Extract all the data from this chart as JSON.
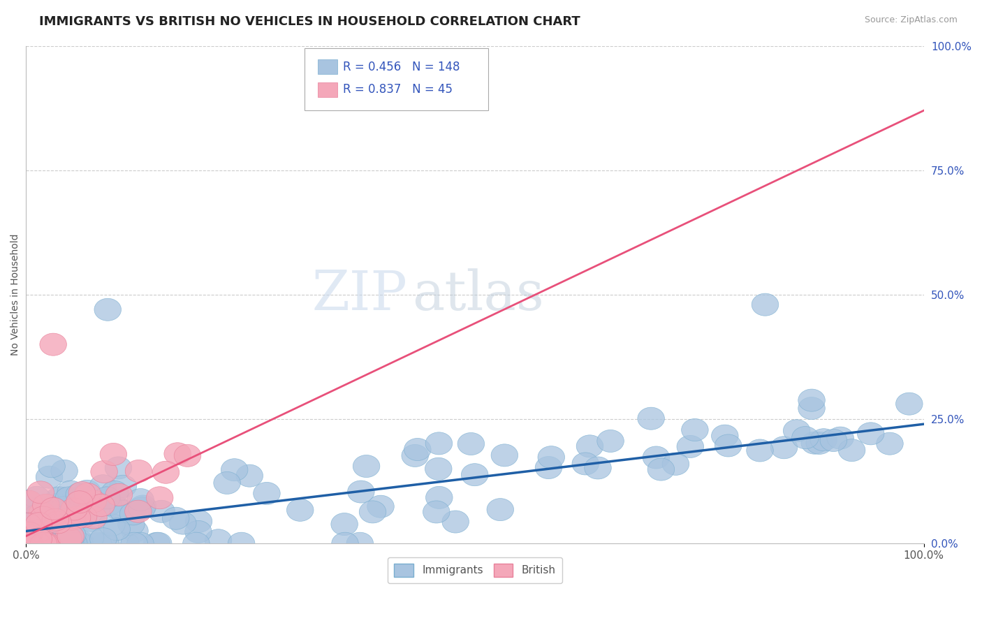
{
  "title": "IMMIGRANTS VS BRITISH NO VEHICLES IN HOUSEHOLD CORRELATION CHART",
  "source_text": "Source: ZipAtlas.com",
  "ylabel": "No Vehicles in Household",
  "xlim": [
    0.0,
    100.0
  ],
  "ylim": [
    0.0,
    100.0
  ],
  "x_ticks": [
    0.0,
    100.0
  ],
  "x_tick_labels": [
    "0.0%",
    "100.0%"
  ],
  "y_ticks_right": [
    0.0,
    25.0,
    50.0,
    75.0,
    100.0
  ],
  "y_tick_labels_right": [
    "0.0%",
    "25.0%",
    "50.0%",
    "75.0%",
    "100.0%"
  ],
  "immigrants_color": "#a8c4e0",
  "immigrants_edge_color": "#7aaed0",
  "british_color": "#f4a7b9",
  "british_edge_color": "#e8809a",
  "immigrants_line_color": "#1f5fa6",
  "british_line_color": "#e8507a",
  "immigrants_R": 0.456,
  "immigrants_N": 148,
  "british_R": 0.837,
  "british_N": 45,
  "immigrants_intercept": 2.5,
  "immigrants_slope": 0.215,
  "british_intercept": 1.5,
  "british_slope": 0.855,
  "watermark_zip": "ZIP",
  "watermark_atlas": "atlas",
  "background_color": "#ffffff",
  "grid_color": "#cccccc",
  "legend_label_color": "#3355bb",
  "title_fontsize": 13,
  "label_fontsize": 10,
  "tick_fontsize": 11,
  "source_fontsize": 9
}
